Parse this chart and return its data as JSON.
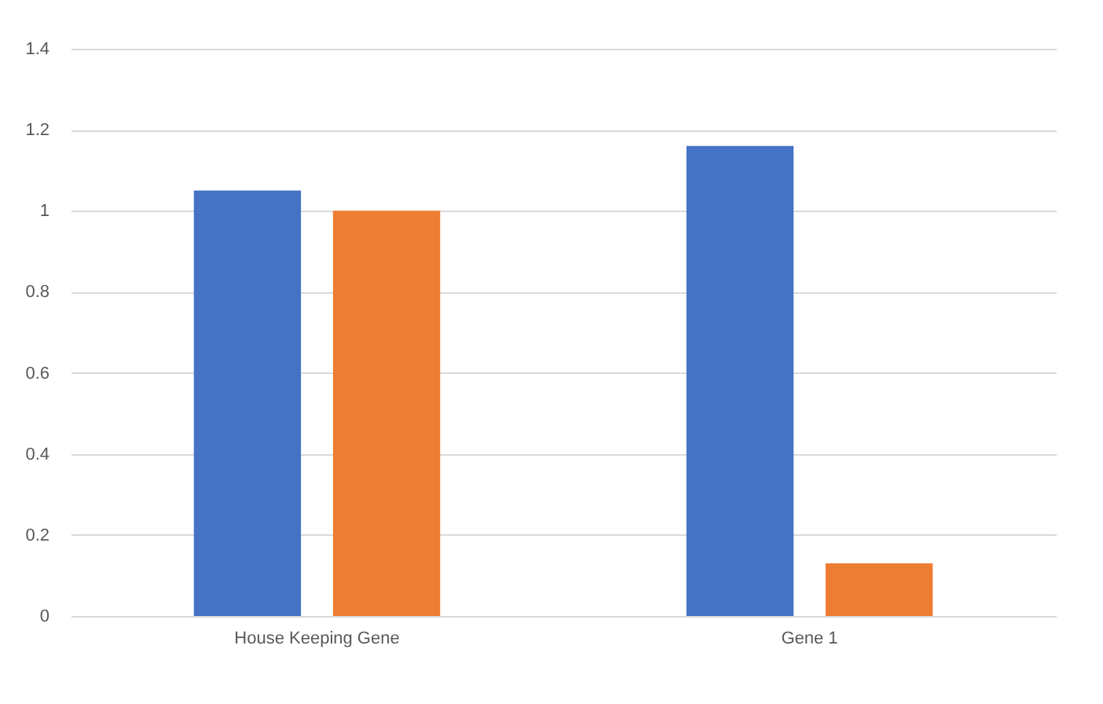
{
  "chart_data": {
    "type": "bar",
    "categories": [
      "House Keeping Gene",
      "Gene 1"
    ],
    "series": [
      {
        "color": "#4472c4",
        "values": [
          1.05,
          1.16
        ]
      },
      {
        "color": "#ed7d31",
        "values": [
          1.0,
          0.13
        ]
      }
    ],
    "ylim": [
      0,
      1.4
    ],
    "yticks": [
      0,
      0.2,
      0.4,
      0.6,
      0.8,
      1,
      1.2,
      1.4
    ],
    "grid": "y",
    "legend": false
  }
}
